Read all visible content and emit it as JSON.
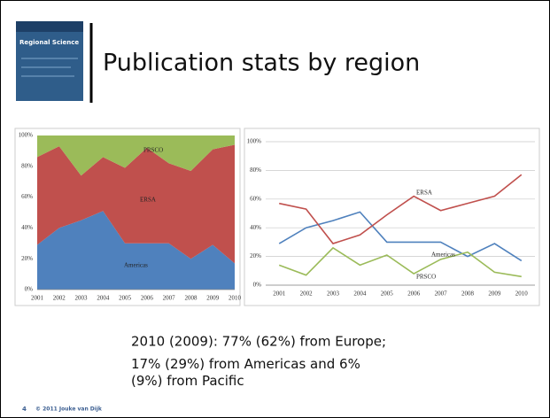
{
  "title": "Publication stats by region",
  "cover_title": "Regional Science",
  "body": [
    "2010 (2009): 77% (62%) from Europe;",
    "17% (29%) from Americas and 6% (9%) from Pacific"
  ],
  "footer": {
    "page": "4",
    "text": "© 2011 Jouke van Dijk"
  },
  "chart_data": [
    {
      "type": "area",
      "stacked": true,
      "grid": false,
      "categories": [
        "2001",
        "2002",
        "2003",
        "2004",
        "2005",
        "2006",
        "2007",
        "2008",
        "2009",
        "2010"
      ],
      "series": [
        {
          "name": "Americas",
          "color": "#4f81bd",
          "values": [
            29,
            40,
            45,
            51,
            30,
            30,
            30,
            20,
            29,
            17
          ]
        },
        {
          "name": "ERSA",
          "color": "#c0504d",
          "values": [
            57,
            53,
            29,
            35,
            49,
            62,
            52,
            57,
            62,
            77
          ]
        },
        {
          "name": "PRSCO",
          "color": "#9bbb59",
          "values": [
            14,
            7,
            26,
            14,
            21,
            8,
            18,
            23,
            9,
            6
          ]
        }
      ],
      "ylim": [
        0,
        100
      ],
      "yticks": [
        {
          "value": 0,
          "label": "0%"
        },
        {
          "value": 20,
          "label": "20%"
        },
        {
          "value": 40,
          "label": "40%"
        },
        {
          "value": 60,
          "label": "60%"
        },
        {
          "value": 80,
          "label": "80%"
        },
        {
          "value": 100,
          "label": "100%"
        }
      ]
    },
    {
      "type": "line",
      "grid": true,
      "categories": [
        "2001",
        "2002",
        "2003",
        "2004",
        "2005",
        "2006",
        "2007",
        "2008",
        "2009",
        "2010"
      ],
      "series": [
        {
          "name": "Americas",
          "color": "#4f81bd",
          "values": [
            29,
            40,
            45,
            51,
            30,
            30,
            30,
            20,
            29,
            17
          ]
        },
        {
          "name": "ERSA",
          "color": "#c0504d",
          "values": [
            57,
            53,
            29,
            35,
            49,
            62,
            52,
            57,
            62,
            77
          ]
        },
        {
          "name": "PRSCO",
          "color": "#9bbb59",
          "values": [
            14,
            7,
            26,
            14,
            21,
            8,
            18,
            23,
            9,
            6
          ]
        }
      ],
      "ylim": [
        0,
        100
      ],
      "yticks": [
        {
          "value": 0,
          "label": "0%"
        },
        {
          "value": 20,
          "label": "20%"
        },
        {
          "value": 40,
          "label": "40%"
        },
        {
          "value": 60,
          "label": "60%"
        },
        {
          "value": 80,
          "label": "80%"
        },
        {
          "value": 100,
          "label": "100%"
        }
      ]
    }
  ]
}
